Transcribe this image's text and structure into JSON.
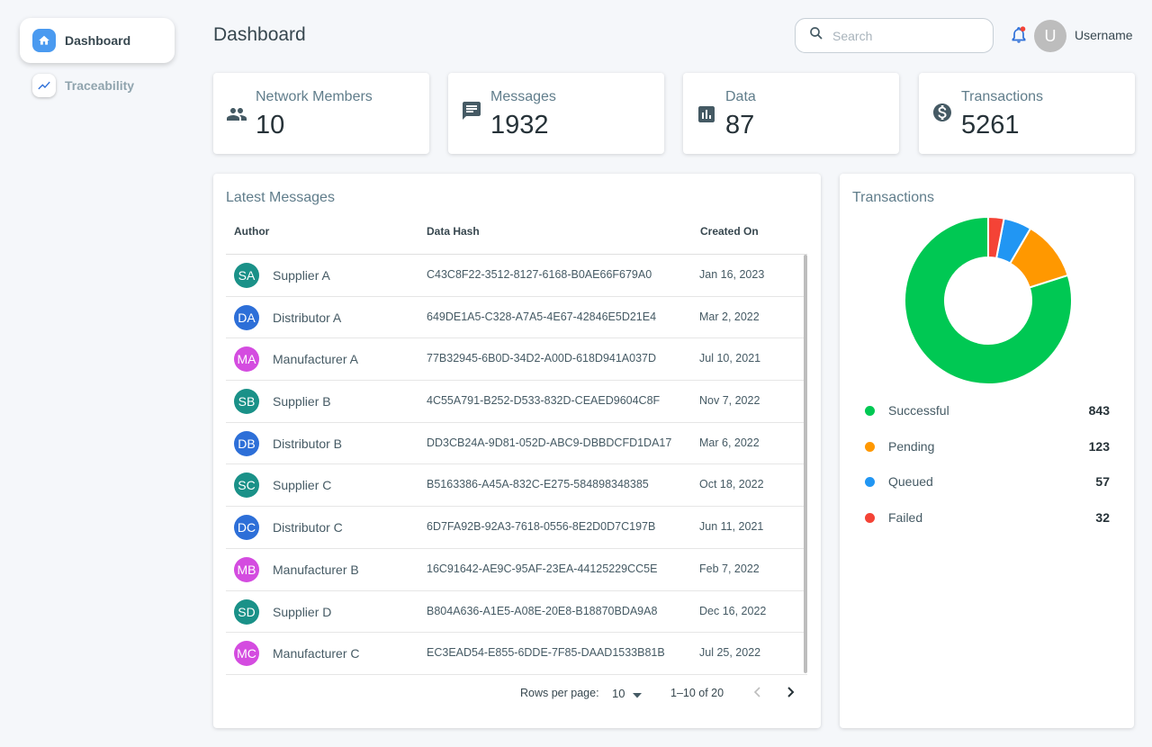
{
  "sidebar": {
    "items": [
      {
        "label": "Dashboard",
        "icon": "home-icon",
        "active": true
      },
      {
        "label": "Traceability",
        "icon": "trending-icon",
        "active": false
      }
    ]
  },
  "header": {
    "title": "Dashboard",
    "search_placeholder": "Search",
    "avatar_initial": "U",
    "username": "Username"
  },
  "stats": [
    {
      "label": "Network Members",
      "value": "10",
      "icon": "people-icon"
    },
    {
      "label": "Messages",
      "value": "1932",
      "icon": "message-icon"
    },
    {
      "label": "Data",
      "value": "87",
      "icon": "bar-chart-icon"
    },
    {
      "label": "Transactions",
      "value": "5261",
      "icon": "dollar-icon"
    }
  ],
  "messages": {
    "title": "Latest Messages",
    "columns": [
      "Author",
      "Data Hash",
      "Created On"
    ],
    "rows": [
      {
        "initials": "SA",
        "author": "Supplier A",
        "hash": "C43C8F22-3512-8127-6168-B0AE66F679A0",
        "created": "Jan 16, 2023",
        "color": "#1a9188"
      },
      {
        "initials": "DA",
        "author": "Distributor A",
        "hash": "649DE1A5-C328-A7A5-4E67-42846E5D21E4",
        "created": "Mar 2, 2022",
        "color": "#2d6fd8"
      },
      {
        "initials": "MA",
        "author": "Manufacturer A",
        "hash": "77B32945-6B0D-34D2-A00D-618D941A037D",
        "created": "Jul 10, 2021",
        "color": "#d44ce0"
      },
      {
        "initials": "SB",
        "author": "Supplier B",
        "hash": "4C55A791-B252-D533-832D-CEAED9604C8F",
        "created": "Nov 7, 2022",
        "color": "#1a9188"
      },
      {
        "initials": "DB",
        "author": "Distributor B",
        "hash": "DD3CB24A-9D81-052D-ABC9-DBBDCFD1DA17",
        "created": "Mar 6, 2022",
        "color": "#2d6fd8"
      },
      {
        "initials": "SC",
        "author": "Supplier C",
        "hash": "B5163386-A45A-832C-E275-584898348385",
        "created": "Oct 18, 2022",
        "color": "#1a9188"
      },
      {
        "initials": "DC",
        "author": "Distributor C",
        "hash": "6D7FA92B-92A3-7618-0556-8E2D0D7C197B",
        "created": "Jun 11, 2021",
        "color": "#2d6fd8"
      },
      {
        "initials": "MB",
        "author": "Manufacturer B",
        "hash": "16C91642-AE9C-95AF-23EA-44125229CC5E",
        "created": "Feb 7, 2022",
        "color": "#d44ce0"
      },
      {
        "initials": "SD",
        "author": "Supplier D",
        "hash": "B804A636-A1E5-A08E-20E8-B18870BDA9A8",
        "created": "Dec 16, 2022",
        "color": "#1a9188"
      },
      {
        "initials": "MC",
        "author": "Manufacturer C",
        "hash": "EC3EAD54-E855-6DDE-7F85-DAAD1533B81B",
        "created": "Jul 25, 2022",
        "color": "#d44ce0"
      }
    ],
    "pagination": {
      "rows_per_page_label": "Rows per page:",
      "rows_per_page": "10",
      "range": "1–10 of 20"
    }
  },
  "transactions": {
    "title": "Transactions",
    "legend": [
      {
        "label": "Successful",
        "value": "843",
        "color": "#00c853"
      },
      {
        "label": "Pending",
        "value": "123",
        "color": "#ff9800"
      },
      {
        "label": "Queued",
        "value": "57",
        "color": "#2196f3"
      },
      {
        "label": "Failed",
        "value": "32",
        "color": "#f44336"
      }
    ]
  },
  "chart_data": {
    "type": "pie",
    "title": "Transactions",
    "categories": [
      "Successful",
      "Pending",
      "Queued",
      "Failed"
    ],
    "values": [
      843,
      123,
      57,
      32
    ],
    "colors": [
      "#00c853",
      "#ff9800",
      "#2196f3",
      "#f44336"
    ]
  }
}
